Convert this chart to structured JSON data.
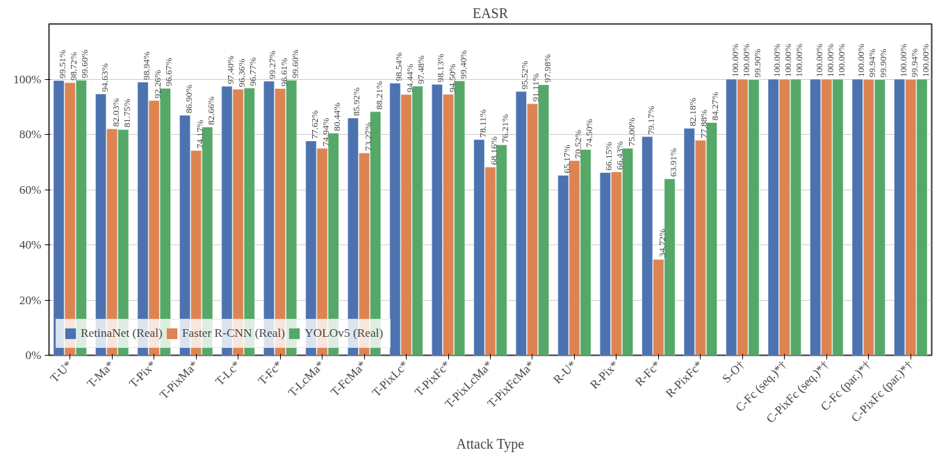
{
  "chart_data": {
    "type": "bar",
    "title": "EASR",
    "xlabel": "Attack Type",
    "categories": [
      "T-U*",
      "T-Ma*",
      "T-Pix*",
      "T-PixMa*",
      "T-Lc*",
      "T-Fc*",
      "T-LcMa*",
      "T-FcMa*",
      "T-PixLc*",
      "T-PixFc*",
      "T-PixLcMa*",
      "T-PixFcMa*",
      "R-U*",
      "R-Pix*",
      "R-Fc*",
      "R-PixFc*",
      "S-O†",
      "C-Fc (seq.)*†",
      "C-PixFc (seq.)*†",
      "C-Fc (par.)*†",
      "C-PixFc (par.)*†"
    ],
    "series": [
      {
        "name": "RetinaNet (Real)",
        "color": "#4c72b0",
        "values": [
          99.51,
          94.63,
          98.94,
          86.9,
          97.4,
          99.27,
          77.62,
          85.92,
          98.54,
          98.13,
          78.11,
          95.52,
          65.17,
          66.15,
          79.17,
          82.18,
          100.0,
          100.0,
          100.0,
          100.0,
          100.0
        ],
        "value_labels": [
          "99.51%",
          "94.63%",
          "98.94%",
          "86.90%",
          "97.40%",
          "99.27%",
          "77.62%",
          "85.92%",
          "98.54%",
          "98.13%",
          "78.11%",
          "95.52%",
          "65.17%",
          "66.15%",
          "79.17%",
          "82.18%",
          "100.00%",
          "100.00%",
          "100.00%",
          "100.00%",
          "100.00%"
        ]
      },
      {
        "name": "Faster R-CNN (Real)",
        "color": "#dd8452",
        "values": [
          98.72,
          82.03,
          92.26,
          74.17,
          96.36,
          96.61,
          74.94,
          73.27,
          94.44,
          94.5,
          68.16,
          91.11,
          70.52,
          66.43,
          34.72,
          77.88,
          100.0,
          100.0,
          100.0,
          99.94,
          99.94
        ],
        "value_labels": [
          "98.72%",
          "82.03%",
          "92.26%",
          "74.17%",
          "96.36%",
          "96.61%",
          "74.94%",
          "73.27%",
          "94.44%",
          "94.50%",
          "68.16%",
          "91.11%",
          "70.52%",
          "66.43%",
          "34.72%",
          "77.88%",
          "100.00%",
          "100.00%",
          "100.00%",
          "99.94%",
          "99.94%"
        ]
      },
      {
        "name": "YOLOv5 (Real)",
        "color": "#55a868",
        "values": [
          99.6,
          81.75,
          96.67,
          82.66,
          96.77,
          99.6,
          80.44,
          88.21,
          97.48,
          99.4,
          76.21,
          97.98,
          74.5,
          75.0,
          63.91,
          84.27,
          99.9,
          100.0,
          100.0,
          99.9,
          100.0
        ],
        "value_labels": [
          "99.60%",
          "81.75%",
          "96.67%",
          "82.66%",
          "96.77%",
          "99.60%",
          "80.44%",
          "88.21%",
          "97.48%",
          "99.40%",
          "76.21%",
          "97.98%",
          "74.50%",
          "75.00%",
          "63.91%",
          "84.27%",
          "99.90%",
          "100.00%",
          "100.00%",
          "99.90%",
          "100.00%"
        ]
      }
    ],
    "ylim": [
      0,
      120
    ],
    "yticks": [
      {
        "value": 0,
        "label": "0%"
      },
      {
        "value": 20,
        "label": "20%"
      },
      {
        "value": 40,
        "label": "40%"
      },
      {
        "value": 60,
        "label": "60%"
      },
      {
        "value": 80,
        "label": "80%"
      },
      {
        "value": 100,
        "label": "100%"
      }
    ],
    "grid": "y",
    "legend": "bottom left"
  }
}
